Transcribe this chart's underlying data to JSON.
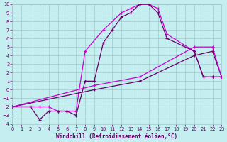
{
  "xlabel": "Windchill (Refroidissement éolien,°C)",
  "bg_color": "#c5eef0",
  "grid_color": "#a0c8cc",
  "lc_bright": "#cc00cc",
  "lc_dark": "#660066",
  "xlim": [
    0,
    23
  ],
  "ylim": [
    -4,
    10
  ],
  "xticks": [
    0,
    1,
    2,
    3,
    4,
    5,
    6,
    7,
    8,
    9,
    10,
    11,
    12,
    13,
    14,
    15,
    16,
    17,
    18,
    19,
    20,
    21,
    22,
    23
  ],
  "yticks": [
    -4,
    -3,
    -2,
    -1,
    0,
    1,
    2,
    3,
    4,
    5,
    6,
    7,
    8,
    9,
    10
  ],
  "curve1_x": [
    0,
    2,
    3,
    4,
    5,
    6,
    7,
    8,
    10,
    12,
    13,
    14,
    15,
    16,
    17,
    20,
    21,
    22,
    23
  ],
  "curve1_y": [
    -2,
    -2,
    -2,
    -2,
    -2.5,
    -2.5,
    -2.5,
    4.5,
    7,
    9,
    9.5,
    10,
    10,
    9.5,
    6.5,
    4.5,
    1.5,
    1.5,
    1.5
  ],
  "curve2_x": [
    0,
    2,
    3,
    4,
    5,
    6,
    7,
    8,
    9,
    10,
    11,
    12,
    13,
    14,
    15,
    16,
    17,
    20,
    21,
    22,
    23
  ],
  "curve2_y": [
    -2,
    -2,
    -3.5,
    -2.5,
    -2.5,
    -2.5,
    -3,
    1,
    1,
    5.5,
    7,
    8.5,
    9,
    10,
    10,
    9,
    6,
    4.5,
    1.5,
    1.5,
    1.5
  ],
  "line3_x": [
    0,
    9,
    14,
    20,
    22,
    23
  ],
  "line3_y": [
    -2,
    0,
    1,
    4,
    4.5,
    1.5
  ],
  "line4_x": [
    0,
    9,
    14,
    20,
    22,
    23
  ],
  "line4_y": [
    -2,
    0.5,
    1.5,
    5,
    5,
    1.5
  ]
}
